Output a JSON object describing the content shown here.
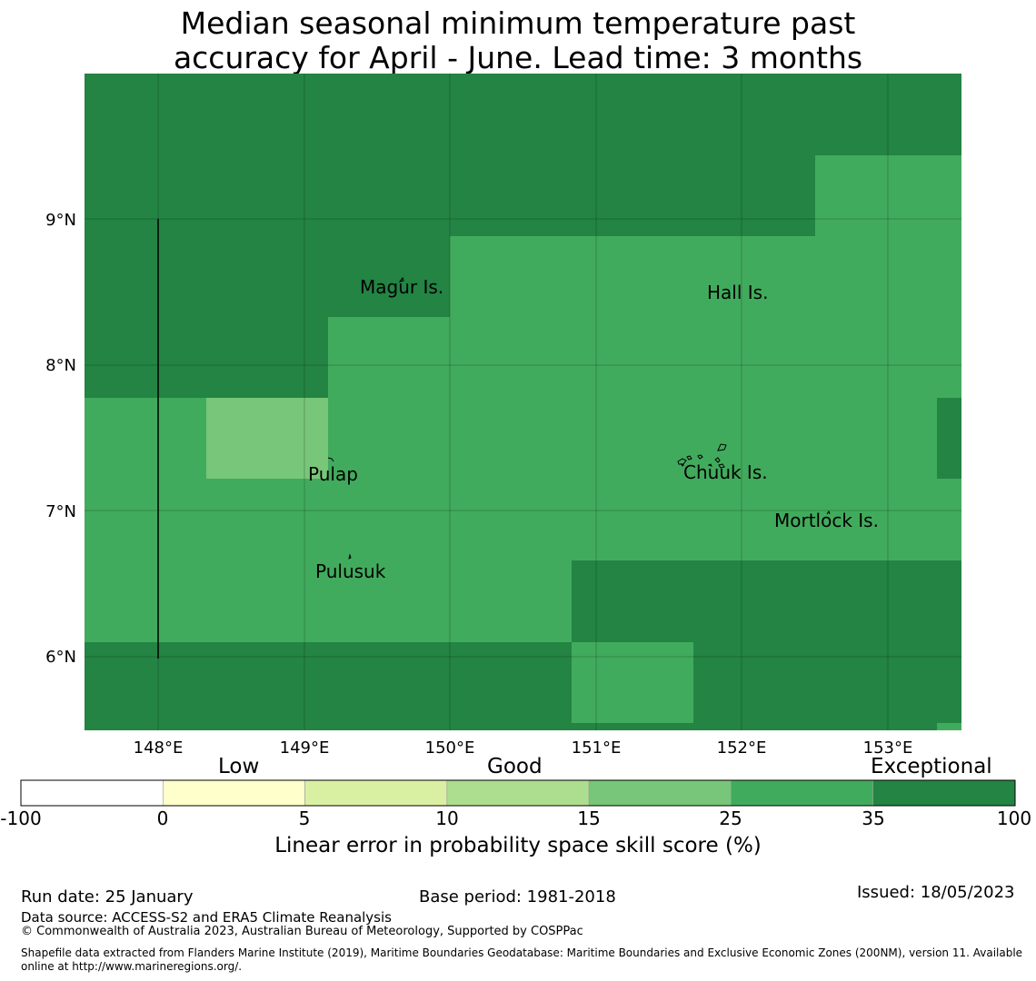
{
  "title": {
    "line1": "Median seasonal minimum temperature past",
    "line2": "accuracy for April - June. Lead time: 3 months"
  },
  "map": {
    "lat_labels": [
      "9°N",
      "8°N",
      "7°N",
      "6°N"
    ],
    "lon_labels": [
      "148°E",
      "149°E",
      "150°E",
      "151°E",
      "152°E",
      "153°E"
    ],
    "places": [
      "Magur Is.",
      "Hall Is.",
      "Pulap",
      "Chuuk Is.",
      "Mortlock Is.",
      "Pulusuk"
    ]
  },
  "colorbar": {
    "categories": [
      "Low",
      "Good",
      "Exceptional"
    ],
    "ticks": [
      "-100",
      "0",
      "5",
      "10",
      "15",
      "25",
      "35",
      "100"
    ],
    "colors": [
      "#ffffff",
      "#ffffcc",
      "#d9f0a3",
      "#addd8e",
      "#78c679",
      "#41ab5d",
      "#238443"
    ],
    "title": "Linear error in probability space skill score (%)"
  },
  "footer": {
    "run_date": "Run date: 25 January",
    "base_period": "Base period: 1981-2018",
    "issued": "Issued: 18/05/2023",
    "data_source": "Data source: ACCESS-S2 and ERA5 Climate Reanalysis",
    "copyright": "© Commonwealth of Australia 2023, Australian Bureau of Meteorology, Supported by COSPPac",
    "shapefile_line1": "Shapefile data extracted from Flanders Marine Institute (2019), Maritime Boundaries Geodatabase: Maritime Boundaries and Exclusive Economic Zones (200NM), version 11. Available",
    "shapefile_line2": "online at http://www.marineregions.org/."
  }
}
